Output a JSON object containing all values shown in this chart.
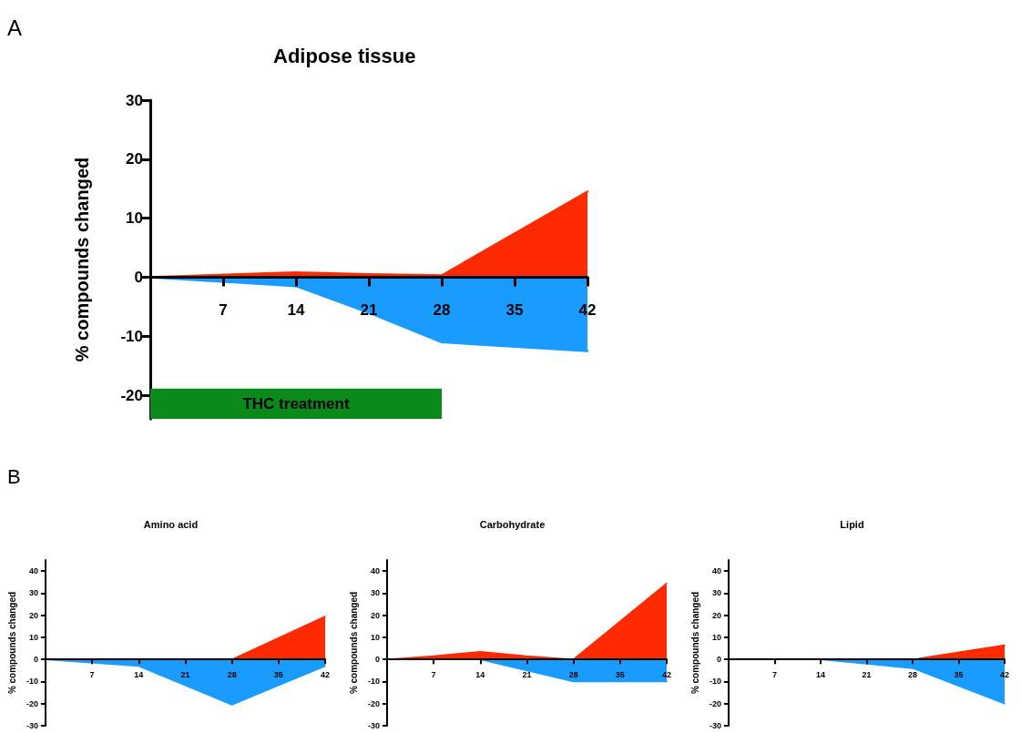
{
  "chart_data": [
    {
      "type": "area",
      "title": "Adipose tissue",
      "ylabel": "% compounds changed",
      "annotations": [
        "A"
      ],
      "xlim": [
        0,
        42
      ],
      "xticks": [
        7,
        14,
        21,
        28,
        35,
        42
      ],
      "ylim": [
        -24,
        30
      ],
      "yticks": [
        -20,
        -10,
        0,
        10,
        20,
        30
      ],
      "marker": "none",
      "bands": [
        {
          "axis": "x",
          "from": 0,
          "to": 28,
          "label": "THC treatment",
          "color": "#0a8a1a"
        }
      ],
      "series": [
        {
          "color": "#ff2a00",
          "x": [
            0,
            14,
            21,
            28,
            42
          ],
          "values": [
            0,
            0.8,
            0.5,
            0.3,
            14.5
          ]
        },
        {
          "color": "#1a9bff",
          "x": [
            0,
            14,
            21,
            28,
            42
          ],
          "values": [
            0,
            -1.5,
            -6,
            -11,
            -12.5
          ]
        }
      ]
    },
    {
      "type": "area",
      "title": "Amino acid",
      "ylabel": "% compounds changed",
      "annotations": [
        "B"
      ],
      "xlim": [
        0,
        42
      ],
      "xticks": [
        7,
        14,
        21,
        28,
        35,
        42
      ],
      "ylim": [
        -30,
        45
      ],
      "yticks": [
        -30,
        -20,
        -10,
        0,
        10,
        20,
        30,
        40
      ],
      "marker": "none",
      "series": [
        {
          "color": "#ff2a00",
          "x": [
            0,
            28,
            42
          ],
          "values": [
            0,
            0,
            19.5
          ]
        },
        {
          "color": "#1a9bff",
          "x": [
            0,
            14,
            28,
            42
          ],
          "values": [
            0,
            -3,
            -20.5,
            -3
          ]
        }
      ]
    },
    {
      "type": "area",
      "title": "Carbohydrate",
      "ylabel": "% compounds changed",
      "xlim": [
        0,
        42
      ],
      "xticks": [
        7,
        14,
        21,
        28,
        35,
        42
      ],
      "ylim": [
        -30,
        45
      ],
      "yticks": [
        -30,
        -20,
        -10,
        0,
        10,
        20,
        30,
        40
      ],
      "marker": "none",
      "series": [
        {
          "color": "#ff2a00",
          "x": [
            0,
            7,
            14,
            21,
            28,
            42
          ],
          "values": [
            0,
            1.5,
            3.5,
            1.5,
            0,
            34.5
          ]
        },
        {
          "color": "#1a9bff",
          "x": [
            0,
            14,
            28,
            42
          ],
          "values": [
            0,
            0,
            -10,
            -10
          ]
        }
      ]
    },
    {
      "type": "area",
      "title": "Lipid",
      "ylabel": "% compounds changed",
      "xlim": [
        0,
        42
      ],
      "xticks": [
        7,
        14,
        21,
        28,
        35,
        42
      ],
      "ylim": [
        -30,
        45
      ],
      "yticks": [
        -30,
        -20,
        -10,
        0,
        10,
        20,
        30,
        40
      ],
      "marker": "none",
      "series": [
        {
          "color": "#ff2a00",
          "x": [
            0,
            14,
            28,
            42
          ],
          "values": [
            0,
            0,
            0,
            6.5
          ]
        },
        {
          "color": "#1a9bff",
          "x": [
            0,
            14,
            21,
            28,
            42
          ],
          "values": [
            0,
            0,
            -2,
            -4,
            -20
          ]
        }
      ]
    }
  ]
}
